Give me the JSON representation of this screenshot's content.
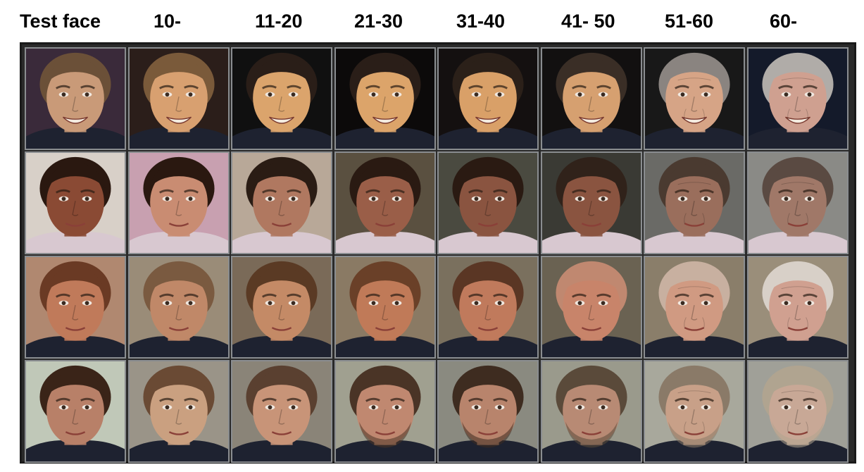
{
  "figure": {
    "column_labels": [
      "Test face",
      "10-",
      "11-20",
      "21-30",
      "31-40",
      "41- 50",
      "51-60",
      "60-"
    ]
  },
  "rows": [
    {
      "name": "subject-1",
      "skin": [
        "#c99a78",
        "#d8a070",
        "#dba46c",
        "#dca46a",
        "#d9a068",
        "#d6a070",
        "#d6a486",
        "#cfa090"
      ],
      "hair": [
        "#6b5038",
        "#7a5a3a",
        "#2a1e18",
        "#2a1e18",
        "#2b2019",
        "#3a2e26",
        "#8a8480",
        "#b0aca8"
      ],
      "bg": [
        "#3a2a3a",
        "#2b1e1a",
        "#101010",
        "#0c0a0a",
        "#141010",
        "#121010",
        "#181818",
        "#141a2a"
      ],
      "smile": true
    },
    {
      "name": "subject-2",
      "skin": [
        "#8a4a34",
        "#c98c72",
        "#b07860",
        "#9a5e48",
        "#8a5440",
        "#8a5440",
        "#9a6e5c",
        "#a07868"
      ],
      "hair": [
        "#2a1810",
        "#2a1810",
        "#2a1c14",
        "#2a1a12",
        "#2a1a12",
        "#30221a",
        "#4a3a30",
        "#5a4a42"
      ],
      "bg": [
        "#d8d0c8",
        "#c8a0b0",
        "#b8a898",
        "#5a5040",
        "#4a4a40",
        "#3a3a34",
        "#6a6a66",
        "#8a8a86"
      ],
      "smile": false
    },
    {
      "name": "subject-3",
      "skin": [
        "#c07a5a",
        "#c08868",
        "#c48a66",
        "#c07a58",
        "#c07a5c",
        "#c8846a",
        "#d09a82",
        "#d0a090"
      ],
      "hair": [
        "#6a3a24",
        "#7a5a40",
        "#5a3a24",
        "#6a4028",
        "#5a3624",
        "#c08870",
        "#c8b0a0",
        "#d8d0c8"
      ],
      "bg": [
        "#b08870",
        "#9a8c78",
        "#7a6a58",
        "#8a7a64",
        "#7a705e",
        "#6a6252",
        "#8a7e6a",
        "#9a8e7a"
      ],
      "smile": false
    },
    {
      "name": "subject-4",
      "skin": [
        "#b88068",
        "#caa080",
        "#c89478",
        "#c08870",
        "#b8846c",
        "#b88a74",
        "#c8a088",
        "#c8a896"
      ],
      "hair": [
        "#3a2418",
        "#6a4a34",
        "#5a4030",
        "#4a3426",
        "#3e2c20",
        "#5a4a3a",
        "#8a7a68",
        "#b0a490"
      ],
      "bg": [
        "#c0c8b8",
        "#9a9488",
        "#8a8478",
        "#a0a090",
        "#8a8a80",
        "#9a9a8c",
        "#a8a89c",
        "#a0a098"
      ],
      "smile": false
    }
  ]
}
